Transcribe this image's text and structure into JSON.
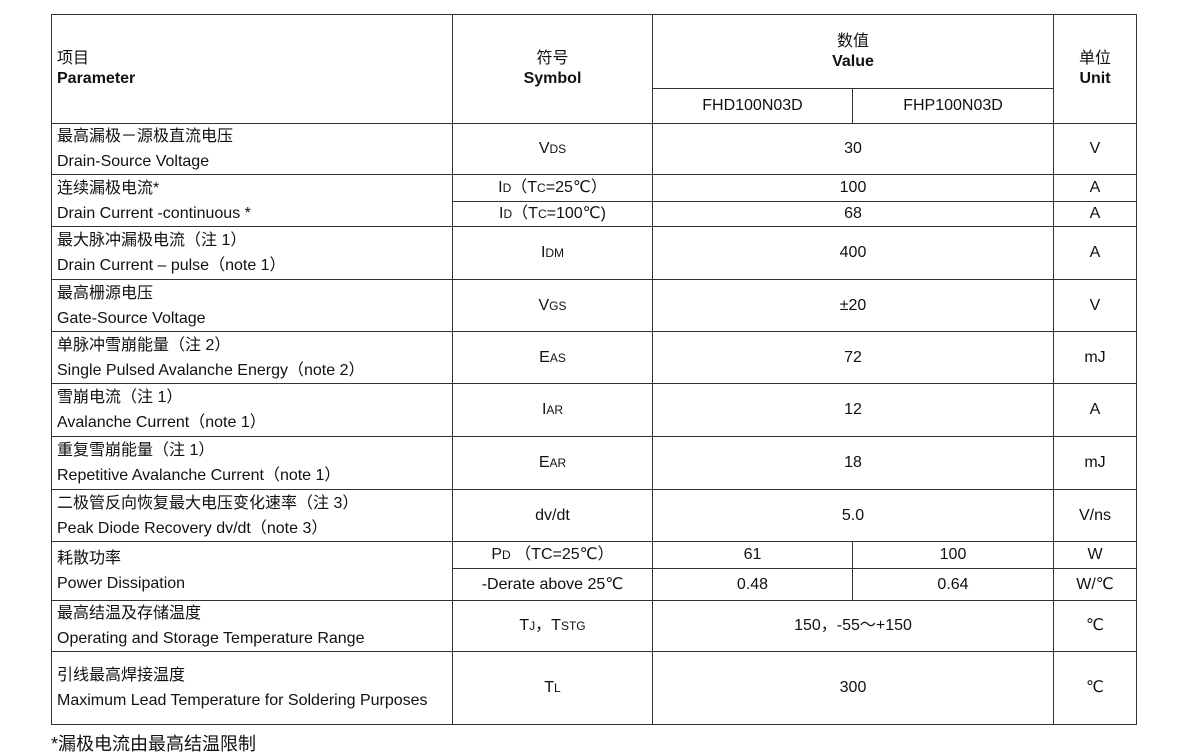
{
  "header": {
    "parameter_cn": "项目",
    "parameter_en": "Parameter",
    "symbol_cn": "符号",
    "symbol_en": "Symbol",
    "value_cn": "数值",
    "value_en": "Value",
    "unit_cn": "单位",
    "unit_en": "Unit",
    "models": [
      "FHD100N03D",
      "FHP100N03D"
    ]
  },
  "rows": [
    {
      "cn": "最高漏极－源极直流电压",
      "en": "Drain-Source Voltage",
      "sub": [
        {
          "sym": [
            {
              "t": "V"
            },
            {
              "t": "DS",
              "s": 1
            }
          ],
          "vals": [
            "30"
          ],
          "unit": "V"
        }
      ]
    },
    {
      "cn": "连续漏极电流*",
      "en": "Drain Current -continuous *",
      "sub": [
        {
          "sym": [
            {
              "t": "I"
            },
            {
              "t": "D",
              "s": 1
            },
            {
              "t": "（T"
            },
            {
              "t": "C",
              "s": 1
            },
            {
              "t": "=25℃）"
            }
          ],
          "vals": [
            "100"
          ],
          "unit": "A"
        },
        {
          "sym": [
            {
              "t": "I"
            },
            {
              "t": "D",
              "s": 1
            },
            {
              "t": "（T"
            },
            {
              "t": "C",
              "s": 1
            },
            {
              "t": "=100℃)"
            }
          ],
          "vals": [
            "68"
          ],
          "unit": "A"
        }
      ]
    },
    {
      "cn": "最大脉冲漏极电流（注 1）",
      "en": "Drain Current – pulse（note 1）",
      "sub": [
        {
          "sym": [
            {
              "t": "I"
            },
            {
              "t": "DM",
              "s": 1
            }
          ],
          "vals": [
            "400"
          ],
          "unit": "A"
        }
      ]
    },
    {
      "cn": "最高栅源电压",
      "en": "Gate-Source Voltage",
      "sub": [
        {
          "sym": [
            {
              "t": "V"
            },
            {
              "t": "GS",
              "s": 1
            }
          ],
          "vals": [
            "±20"
          ],
          "unit": "V"
        }
      ]
    },
    {
      "cn": "单脉冲雪崩能量（注 2）",
      "en": "Single Pulsed Avalanche Energy（note 2）",
      "sub": [
        {
          "sym": [
            {
              "t": "E"
            },
            {
              "t": "AS",
              "s": 1
            }
          ],
          "vals": [
            "72"
          ],
          "unit": "mJ"
        }
      ]
    },
    {
      "cn": "雪崩电流（注 1）",
      "en": "Avalanche Current（note 1）",
      "sub": [
        {
          "sym": [
            {
              "t": "I"
            },
            {
              "t": "AR",
              "s": 1
            }
          ],
          "vals": [
            "12"
          ],
          "unit": "A"
        }
      ]
    },
    {
      "cn": "重复雪崩能量（注 1）",
      "en": "Repetitive Avalanche Current（note 1）",
      "sub": [
        {
          "sym": [
            {
              "t": "E"
            },
            {
              "t": "AR",
              "s": 1
            }
          ],
          "vals": [
            "18"
          ],
          "unit": "mJ"
        }
      ]
    },
    {
      "cn": "二极管反向恢复最大电压变化速率（注 3）",
      "en": " Peak Diode Recovery dv/dt（note 3）",
      "sub": [
        {
          "sym": [
            {
              "t": "dv/dt"
            }
          ],
          "vals": [
            "5.0"
          ],
          "unit": "V/ns"
        }
      ]
    },
    {
      "cn": "耗散功率",
      "en": "Power Dissipation",
      "sub": [
        {
          "sym": [
            {
              "t": "P"
            },
            {
              "t": "D",
              "s": 1
            },
            {
              "t": " （TC=25℃）"
            }
          ],
          "vals": [
            "61",
            "100"
          ],
          "unit": "W"
        },
        {
          "sym": [
            {
              "t": "-Derate above 25℃"
            }
          ],
          "vals": [
            "0.48",
            "0.64"
          ],
          "unit": "W/℃"
        }
      ]
    },
    {
      "cn": "最高结温及存储温度",
      "en": "Operating and Storage Temperature Range",
      "sub": [
        {
          "sym": [
            {
              "t": "T"
            },
            {
              "t": "J",
              "s": 1
            },
            {
              "t": "，T"
            },
            {
              "t": "STG",
              "s": 1
            }
          ],
          "vals": [
            "150，-55～+150"
          ],
          "unit": "℃"
        }
      ]
    },
    {
      "cn": "引线最高焊接温度",
      "en": "Maximum Lead Temperature for Soldering Purposes",
      "sub": [
        {
          "sym": [
            {
              "t": "T"
            },
            {
              "t": "L",
              "s": 1
            }
          ],
          "vals": [
            "300"
          ],
          "unit": "℃"
        }
      ]
    }
  ],
  "footnote": "*漏极电流由最高结温限制"
}
